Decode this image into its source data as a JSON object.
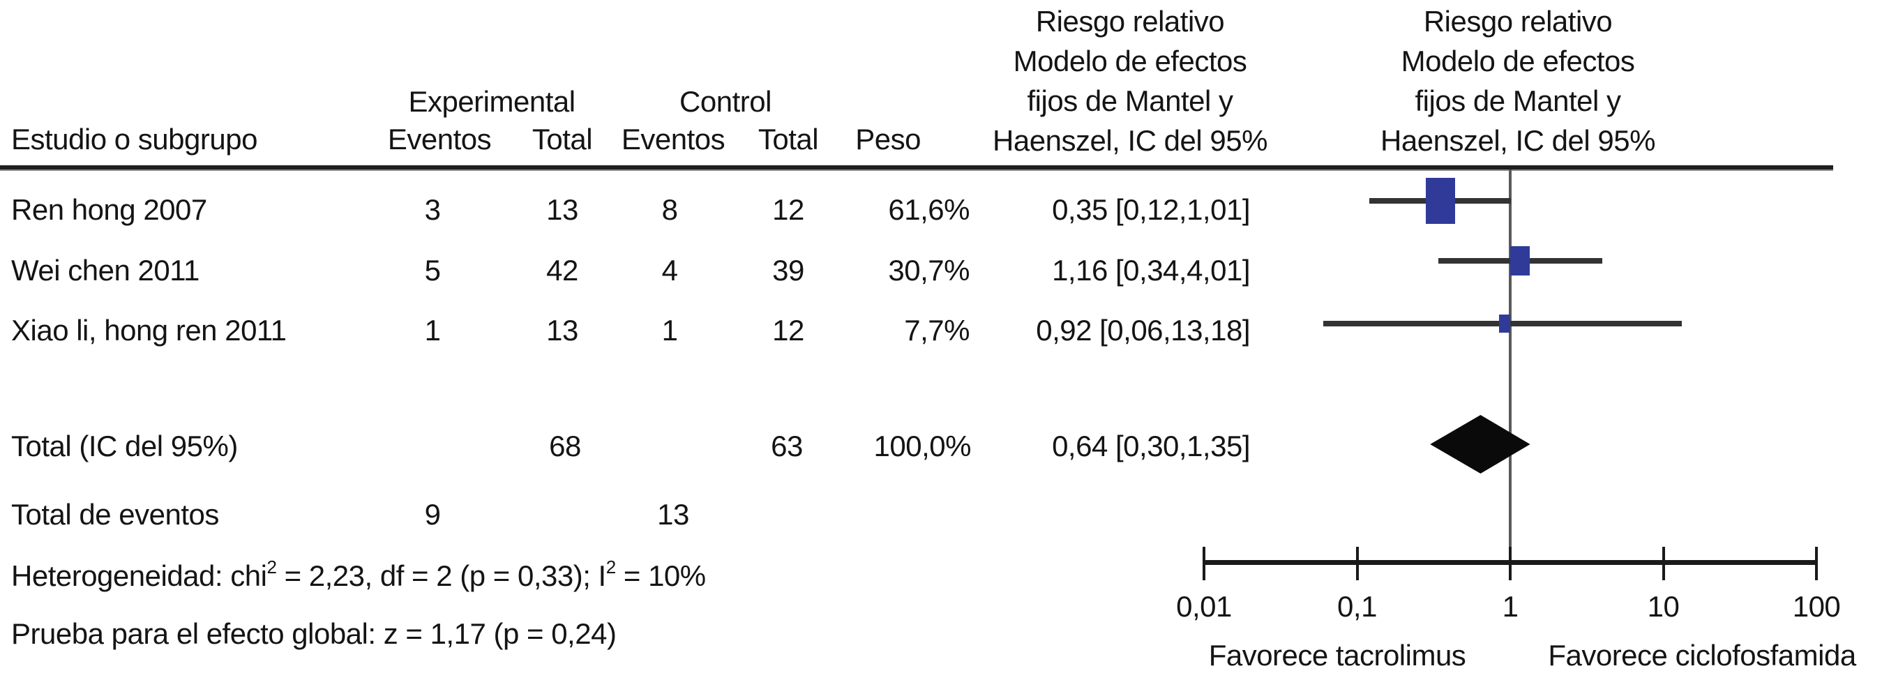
{
  "header": {
    "study_col": "Estudio o subgrupo",
    "experimental": "Experimental",
    "control": "Control",
    "events": "Eventos",
    "total": "Total",
    "weight": "Peso",
    "rr_lines": [
      "Riesgo relativo",
      "Modelo de efectos",
      "fijos de Mantel y",
      "Haenszel, IC del 95%"
    ]
  },
  "rows": [
    {
      "study": "Ren hong 2007",
      "exp_events": "3",
      "exp_total": "13",
      "ctl_events": "8",
      "ctl_total": "12",
      "weight": "61,6%",
      "rr": "0,35 [0,12,1,01]"
    },
    {
      "study": "Wei chen 2011",
      "exp_events": "5",
      "exp_total": "42",
      "ctl_events": "4",
      "ctl_total": "39",
      "weight": "30,7%",
      "rr": "1,16 [0,34,4,01]"
    },
    {
      "study": "Xiao li, hong ren 2011",
      "exp_events": "1",
      "exp_total": "13",
      "ctl_events": "1",
      "ctl_total": "12",
      "weight": "7,7%",
      "rr": "0,92 [0,06,13,18]"
    }
  ],
  "totals": {
    "label": "Total (IC del 95%)",
    "exp_total": "68",
    "ctl_total": "63",
    "weight": "100,0%",
    "rr": "0,64 [0,30,1,35]",
    "events_label": "Total de eventos",
    "exp_events": "9",
    "ctl_events": "13"
  },
  "stats": {
    "het_1": "Heterogeneidad: chi",
    "sup": "2",
    "het_2": " = 2,23, df = 2 (p = 0,33); I",
    "het_3": " = 10%",
    "overall": "Prueba para el efecto global: z = 1,17 (p = 0,24)"
  },
  "axis": {
    "tick_labels": [
      "0,01",
      "0,1",
      "1",
      "10",
      "100"
    ],
    "favors_left": "Favorece tacrolimus",
    "favors_right": "Favorece ciclofosfamida"
  },
  "colors": {
    "square": "#2f3a99",
    "diamond": "#0a0a0a",
    "ci_line": "#333333",
    "axis": "#1a1a1a",
    "null_line": "#5a5a5a"
  },
  "chart_data": {
    "type": "forest",
    "x_scale": "log10",
    "x_ticks": [
      0.01,
      0.1,
      1,
      10,
      100
    ],
    "x_range": [
      0.01,
      100
    ],
    "effect_measure": "Riesgo relativo, Modelo de efectos fijos de Mantel y Haenszel, IC del 95%",
    "studies": [
      {
        "name": "Ren hong 2007",
        "exp_events": 3,
        "exp_total": 13,
        "ctl_events": 8,
        "ctl_total": 12,
        "weight_pct": 61.6,
        "rr": 0.35,
        "ci_low": 0.12,
        "ci_high": 1.01
      },
      {
        "name": "Wei chen 2011",
        "exp_events": 5,
        "exp_total": 42,
        "ctl_events": 4,
        "ctl_total": 39,
        "weight_pct": 30.7,
        "rr": 1.16,
        "ci_low": 0.34,
        "ci_high": 4.01
      },
      {
        "name": "Xiao li, hong ren 2011",
        "exp_events": 1,
        "exp_total": 13,
        "ctl_events": 1,
        "ctl_total": 12,
        "weight_pct": 7.7,
        "rr": 0.92,
        "ci_low": 0.06,
        "ci_high": 13.18
      }
    ],
    "total": {
      "exp_total": 68,
      "ctl_total": 63,
      "exp_events": 9,
      "ctl_events": 13,
      "weight_pct": 100.0,
      "rr": 0.64,
      "ci_low": 0.3,
      "ci_high": 1.35
    },
    "heterogeneity": {
      "chi2": 2.23,
      "df": 2,
      "p": 0.33,
      "I2_pct": 10
    },
    "overall_effect": {
      "z": 1.17,
      "p": 0.24
    },
    "favors_left": "Favorece tacrolimus",
    "favors_right": "Favorece ciclofosfamida"
  }
}
